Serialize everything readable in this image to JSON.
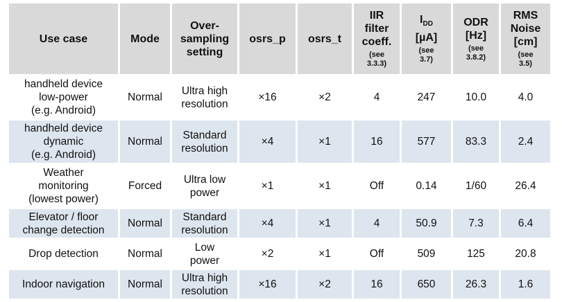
{
  "table": {
    "headers": [
      {
        "lines": [
          "Use case"
        ]
      },
      {
        "lines": [
          "Mode"
        ]
      },
      {
        "lines": [
          "Over-",
          "sampling",
          "setting"
        ]
      },
      {
        "lines": [
          "osrs_p"
        ]
      },
      {
        "lines": [
          "osrs_t"
        ]
      },
      {
        "lines": [
          "IIR",
          "filter",
          "coeff."
        ],
        "note": [
          "(see",
          "3.3.3)"
        ]
      },
      {
        "main": "I",
        "sub": "DD",
        "lines": [
          "[µA]"
        ],
        "note": [
          "(see",
          "3.7)"
        ]
      },
      {
        "lines": [
          "ODR",
          "[Hz]"
        ],
        "note": [
          "(see",
          "3.8.2)"
        ]
      },
      {
        "lines": [
          "RMS",
          "Noise",
          "[cm]"
        ],
        "note": [
          "(see",
          "3.5)"
        ]
      }
    ],
    "rows": [
      [
        [
          "handheld device",
          "low-power",
          "(e.g. Android)"
        ],
        [
          "Normal"
        ],
        [
          "Ultra high",
          "resolution"
        ],
        [
          "×16"
        ],
        [
          "×2"
        ],
        [
          "4"
        ],
        [
          "247"
        ],
        [
          "10.0"
        ],
        [
          "4.0"
        ]
      ],
      [
        [
          "handheld device",
          "dynamic",
          "(e.g. Android)"
        ],
        [
          "Normal"
        ],
        [
          "Standard",
          "resolution"
        ],
        [
          "×4"
        ],
        [
          "×1"
        ],
        [
          "16"
        ],
        [
          "577"
        ],
        [
          "83.3"
        ],
        [
          "2.4"
        ]
      ],
      [
        [
          "Weather",
          "monitoring",
          "(lowest power)"
        ],
        [
          "Forced"
        ],
        [
          "Ultra low",
          "power"
        ],
        [
          "×1"
        ],
        [
          "×1"
        ],
        [
          "Off"
        ],
        [
          "0.14"
        ],
        [
          "1/60"
        ],
        [
          "26.4"
        ]
      ],
      [
        [
          "Elevator / floor",
          "change detection"
        ],
        [
          "Normal"
        ],
        [
          "Standard",
          "resolution"
        ],
        [
          "×4"
        ],
        [
          "×1"
        ],
        [
          "4"
        ],
        [
          "50.9"
        ],
        [
          "7.3"
        ],
        [
          "6.4"
        ]
      ],
      [
        [
          "Drop detection"
        ],
        [
          "Normal"
        ],
        [
          "Low",
          "power"
        ],
        [
          "×2"
        ],
        [
          "×1"
        ],
        [
          "Off"
        ],
        [
          "509"
        ],
        [
          "125"
        ],
        [
          "20.8"
        ]
      ],
      [
        [
          "Indoor navigation"
        ],
        [
          "Normal"
        ],
        [
          "Ultra high",
          "resolution"
        ],
        [
          "×16"
        ],
        [
          "×2"
        ],
        [
          "16"
        ],
        [
          "650"
        ],
        [
          "26.3"
        ],
        [
          "1.6"
        ]
      ]
    ]
  }
}
